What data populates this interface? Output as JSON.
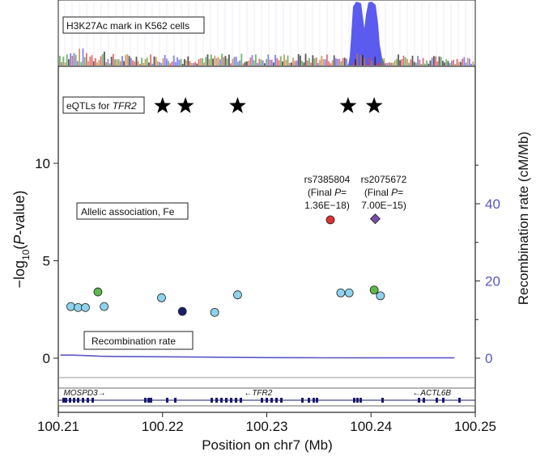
{
  "colors": {
    "track_blue": "#5b5bf0",
    "recomb_line": "#5a57c8",
    "right_axis": "#5a57c8",
    "light_blue": "#8ed3ee",
    "green": "#5db84a",
    "dark_navy": "#1b1f6b",
    "red": "#e03030",
    "purple": "#7a4aa8",
    "gene_navy": "#1a1a6e"
  },
  "labels": {
    "h3k27ac": "H3K27Ac mark in K562 cells",
    "eqtl_prefix": "eQTLs for ",
    "eqtl_gene": "TFR2",
    "allelic": "Allelic association, Fe",
    "recomb": "Recombination rate",
    "ylabel_prefix": "−log",
    "ylabel_sub": "10",
    "ylabel_paren_open": "(",
    "ylabel_P": "P",
    "ylabel_suffix": "-value)",
    "y2label": "Recombination rate (cM/Mb)",
    "xlabel": "Position on chr7 (Mb)",
    "snp1_name": "rs7385804",
    "snp1_line2a": "(Final ",
    "snp1_line2b": "P",
    "snp1_line2c": "=",
    "snp1_line3": "1.36E−18)",
    "snp2_name": "rs2075672",
    "snp2_line2a": "(Final ",
    "snp2_line2b": "P",
    "snp2_line2c": "=",
    "snp2_line3": "7.00E−15)"
  },
  "genes": [
    {
      "name": "MOSPD3",
      "arrow": "→",
      "x": 100.2105
    },
    {
      "name": "TFR2",
      "arrow": "←",
      "x": 100.2275
    },
    {
      "name": "ACTL6B",
      "arrow": "←",
      "x": 100.2435
    }
  ],
  "chart_data": {
    "type": "scatter",
    "xlabel": "Position on chr7 (Mb)",
    "ylabel": "−log10(P-value)",
    "y2label": "Recombination rate (cM/Mb)",
    "xlim": [
      100.21,
      100.25
    ],
    "ylim": [
      0,
      13
    ],
    "y2lim": [
      0,
      60
    ],
    "xticks": [
      "100.21",
      "100.22",
      "100.23",
      "100.24",
      "100.25"
    ],
    "xtick_values": [
      100.21,
      100.22,
      100.23,
      100.24,
      100.25
    ],
    "yticks": [
      "0",
      "5",
      "10"
    ],
    "ytick_values": [
      0,
      5,
      10
    ],
    "y2ticks": [
      "0",
      "20",
      "40"
    ],
    "y2tick_values": [
      0,
      20,
      40
    ],
    "points": [
      {
        "x": 100.2112,
        "y": 2.65,
        "color": "light_blue"
      },
      {
        "x": 100.2119,
        "y": 2.6,
        "color": "light_blue"
      },
      {
        "x": 100.2126,
        "y": 2.6,
        "color": "light_blue"
      },
      {
        "x": 100.2138,
        "y": 3.4,
        "color": "green"
      },
      {
        "x": 100.2144,
        "y": 2.65,
        "color": "light_blue"
      },
      {
        "x": 100.2199,
        "y": 3.1,
        "color": "light_blue"
      },
      {
        "x": 100.2219,
        "y": 2.4,
        "color": "dark_navy"
      },
      {
        "x": 100.225,
        "y": 2.35,
        "color": "light_blue"
      },
      {
        "x": 100.2272,
        "y": 3.25,
        "color": "light_blue"
      },
      {
        "x": 100.2361,
        "y": 7.1,
        "color": "red",
        "shape": "circle"
      },
      {
        "x": 100.2371,
        "y": 3.35,
        "color": "light_blue"
      },
      {
        "x": 100.2379,
        "y": 3.35,
        "color": "light_blue"
      },
      {
        "x": 100.2403,
        "y": 3.5,
        "color": "green"
      },
      {
        "x": 100.2404,
        "y": 7.15,
        "color": "purple",
        "shape": "diamond"
      },
      {
        "x": 100.2409,
        "y": 3.2,
        "color": "light_blue"
      }
    ],
    "eqtls_x": [
      100.22,
      100.2222,
      100.2272,
      100.2378,
      100.2403
    ],
    "recombination": {
      "x": [
        100.2102,
        100.2112,
        100.2125,
        100.214,
        100.216,
        100.22,
        100.225,
        100.23,
        100.235,
        100.24,
        100.245,
        100.248
      ],
      "y": [
        0.8,
        0.8,
        0.7,
        0.5,
        0.45,
        0.35,
        0.25,
        0.15,
        0.1,
        0.08,
        0.08,
        0.08
      ]
    }
  }
}
